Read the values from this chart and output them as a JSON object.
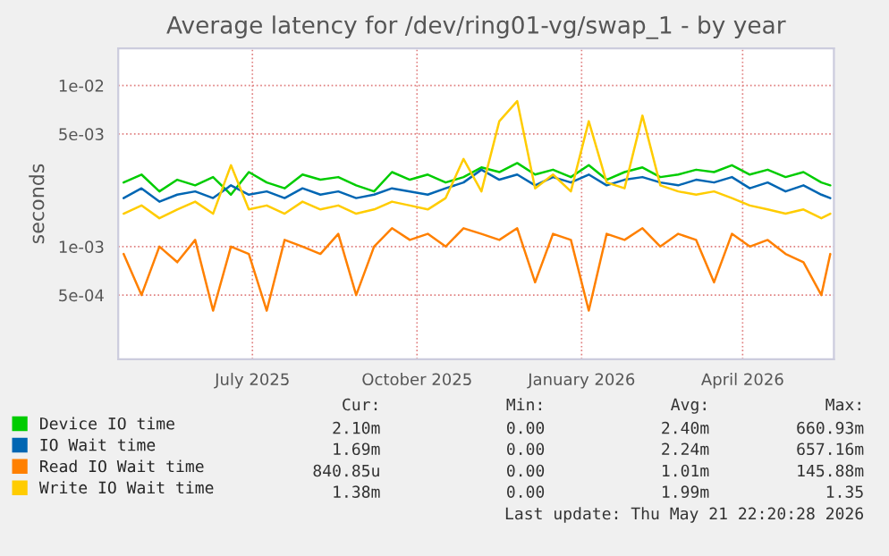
{
  "chart_data": {
    "type": "line",
    "title": "Average latency for /dev/ring01-vg/swap_1 - by year",
    "ylabel": "seconds",
    "x": [
      "2025-04-20",
      "2025-04-30",
      "2025-05-10",
      "2025-05-20",
      "2025-05-30",
      "2025-06-09",
      "2025-06-19",
      "2025-06-29",
      "2025-07-09",
      "2025-07-19",
      "2025-07-29",
      "2025-08-08",
      "2025-08-18",
      "2025-08-28",
      "2025-09-07",
      "2025-09-17",
      "2025-09-27",
      "2025-10-07",
      "2025-10-17",
      "2025-10-27",
      "2025-11-06",
      "2025-11-16",
      "2025-11-26",
      "2025-12-06",
      "2025-12-16",
      "2025-12-26",
      "2026-01-05",
      "2026-01-15",
      "2026-01-25",
      "2026-02-04",
      "2026-02-14",
      "2026-02-24",
      "2026-03-06",
      "2026-03-16",
      "2026-03-26",
      "2026-04-05",
      "2026-04-15",
      "2026-04-25",
      "2026-05-05",
      "2026-05-15",
      "2026-05-20"
    ],
    "series": [
      {
        "name": "Device IO time",
        "color": "#00cc00",
        "values": [
          0.0025,
          0.0028,
          0.0022,
          0.0026,
          0.0024,
          0.0027,
          0.0021,
          0.0029,
          0.0025,
          0.0023,
          0.0028,
          0.0026,
          0.0027,
          0.0024,
          0.0022,
          0.0029,
          0.0026,
          0.0028,
          0.0025,
          0.0027,
          0.0031,
          0.0029,
          0.0033,
          0.0028,
          0.003,
          0.0027,
          0.0032,
          0.0026,
          0.0029,
          0.0031,
          0.0027,
          0.0028,
          0.003,
          0.0029,
          0.0032,
          0.0028,
          0.003,
          0.0027,
          0.0029,
          0.0025,
          0.0024
        ]
      },
      {
        "name": "IO Wait time",
        "color": "#0066b3",
        "values": [
          0.002,
          0.0023,
          0.0019,
          0.0021,
          0.0022,
          0.002,
          0.0024,
          0.0021,
          0.0022,
          0.002,
          0.0023,
          0.0021,
          0.0022,
          0.002,
          0.0021,
          0.0023,
          0.0022,
          0.0021,
          0.0023,
          0.0025,
          0.003,
          0.0026,
          0.0028,
          0.0024,
          0.0027,
          0.0025,
          0.0028,
          0.0024,
          0.0026,
          0.0027,
          0.0025,
          0.0024,
          0.0026,
          0.0025,
          0.0027,
          0.0023,
          0.0025,
          0.0022,
          0.0024,
          0.0021,
          0.002
        ]
      },
      {
        "name": "Read IO Wait time",
        "color": "#ff8000",
        "values": [
          0.0009,
          0.0005,
          0.001,
          0.0008,
          0.0011,
          0.0004,
          0.001,
          0.0009,
          0.0004,
          0.0011,
          0.001,
          0.0009,
          0.0012,
          0.0005,
          0.001,
          0.0013,
          0.0011,
          0.0012,
          0.001,
          0.0013,
          0.0012,
          0.0011,
          0.0013,
          0.0006,
          0.0012,
          0.0011,
          0.0004,
          0.0012,
          0.0011,
          0.0013,
          0.001,
          0.0012,
          0.0011,
          0.0006,
          0.0012,
          0.001,
          0.0011,
          0.0009,
          0.0008,
          0.0005,
          0.0009
        ]
      },
      {
        "name": "Write IO Wait time",
        "color": "#ffcc00",
        "values": [
          0.0016,
          0.0018,
          0.0015,
          0.0017,
          0.0019,
          0.0016,
          0.0032,
          0.0017,
          0.0018,
          0.0016,
          0.0019,
          0.0017,
          0.0018,
          0.0016,
          0.0017,
          0.0019,
          0.0018,
          0.0017,
          0.002,
          0.0035,
          0.0022,
          0.006,
          0.008,
          0.0023,
          0.0028,
          0.0022,
          0.006,
          0.0025,
          0.0023,
          0.0065,
          0.0024,
          0.0022,
          0.0021,
          0.0022,
          0.002,
          0.0018,
          0.0017,
          0.0016,
          0.0017,
          0.0015,
          0.0016
        ]
      }
    ],
    "log": "y",
    "ylim": [
      0.0002,
      0.017
    ],
    "yticks": [
      {
        "value": 0.0005,
        "label": "5e-04"
      },
      {
        "value": 0.001,
        "label": "1e-03"
      },
      {
        "value": 0.005,
        "label": "5e-03"
      },
      {
        "value": 0.01,
        "label": "1e-02"
      }
    ],
    "xlim": [
      "2025-04-17",
      "2026-05-22"
    ],
    "xticks": [
      {
        "value": "2025-07-01",
        "label": "July 2025"
      },
      {
        "value": "2025-10-01",
        "label": "October 2025"
      },
      {
        "value": "2026-01-01",
        "label": "January 2026"
      },
      {
        "value": "2026-04-01",
        "label": "April 2026"
      }
    ],
    "grid": true,
    "legend": "bottom",
    "annotations": [
      "Cur:",
      "Min:",
      "Avg:",
      "Max:",
      "2.10m",
      "0.00",
      "2.40m",
      "660.93m",
      "1.69m",
      "0.00",
      "2.24m",
      "657.16m",
      "840.85u",
      "0.00",
      "1.01m",
      "145.88m",
      "1.38m",
      "0.00",
      "1.99m",
      "1.35",
      "Last update: Thu May 21 22:20:28 2026"
    ]
  }
}
